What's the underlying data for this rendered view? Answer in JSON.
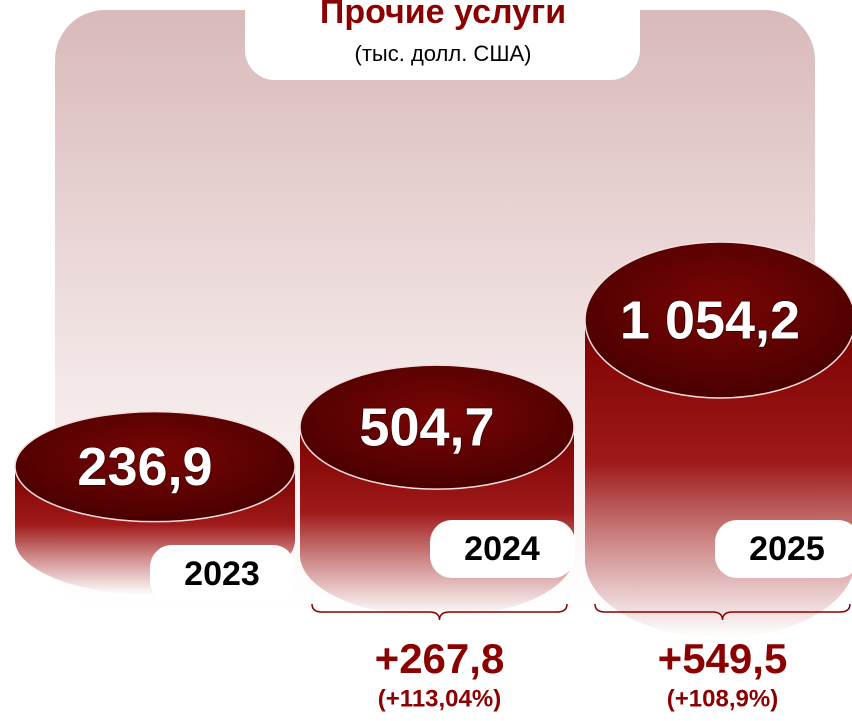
{
  "chart_data": {
    "type": "cylinder",
    "title": "Прочие услуги",
    "subtitle": "(тыс. долл. США)",
    "categories": [
      "2023",
      "2024",
      "2025"
    ],
    "values": [
      236.9,
      504.7,
      1054.2
    ],
    "value_labels": [
      "236,9",
      "504,7",
      "1 054,2"
    ],
    "color": "#6b0000",
    "annotations": [
      {
        "text": "+267,8",
        "subtext": "(+113,04%)"
      },
      {
        "text": "+549,5",
        "subtext": "(+108,9%)"
      }
    ]
  }
}
